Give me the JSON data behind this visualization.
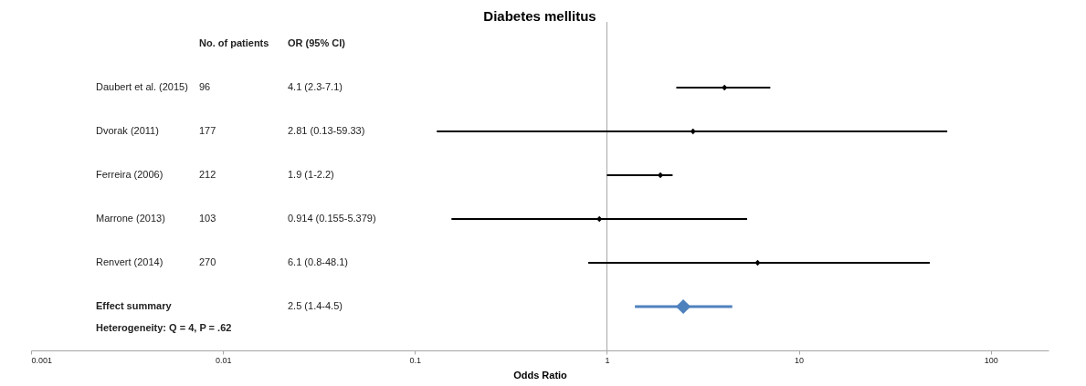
{
  "chart_data": {
    "type": "scatter",
    "orientation": "horizontal",
    "title": "Diabetes mellitus",
    "xlabel": "Odds Ratio",
    "categories": [
      "Daubert et al. (2015)",
      "Dvorak (2011)",
      "Ferreira (2006)",
      "Marrone (2013)",
      "Renvert (2014)",
      "Effect summary"
    ],
    "series": [
      {
        "color": "#000000",
        "values": [
          4.1,
          2.81,
          1.9,
          0.914,
          6.1,
          null
        ],
        "errors": [
          [
            2.3,
            7.1
          ],
          [
            0.13,
            59.33
          ],
          [
            1,
            2.2
          ],
          [
            0.155,
            5.379
          ],
          [
            0.8,
            48.1
          ],
          null
        ]
      },
      {
        "color": "#4f81bd",
        "values": [
          null,
          null,
          null,
          null,
          null,
          2.5
        ],
        "errors": [
          null,
          null,
          null,
          null,
          null,
          [
            1.4,
            4.5
          ]
        ]
      }
    ],
    "annotations": [
      "No. of patients",
      "OR (95% CI)",
      "96",
      "4.1 (2.3-7.1)",
      "177",
      "2.81 (0.13-59.33)",
      "212",
      "1.9 (1-2.2)",
      "103",
      "0.914 (0.155-5.379)",
      "270",
      "6.1 (0.8-48.1)",
      "2.5 (1.4-4.5)",
      "Heterogeneity: Q = 4, P = .62"
    ],
    "log": "x",
    "xlim": [
      0.001,
      200
    ],
    "xticks": [
      0.001,
      0.01,
      0.1,
      1,
      10,
      100
    ],
    "ref_lines": [
      {
        "axis": "x",
        "value": 1,
        "color": "#a6a6a6"
      }
    ],
    "grid": false,
    "marker": "diamond"
  }
}
